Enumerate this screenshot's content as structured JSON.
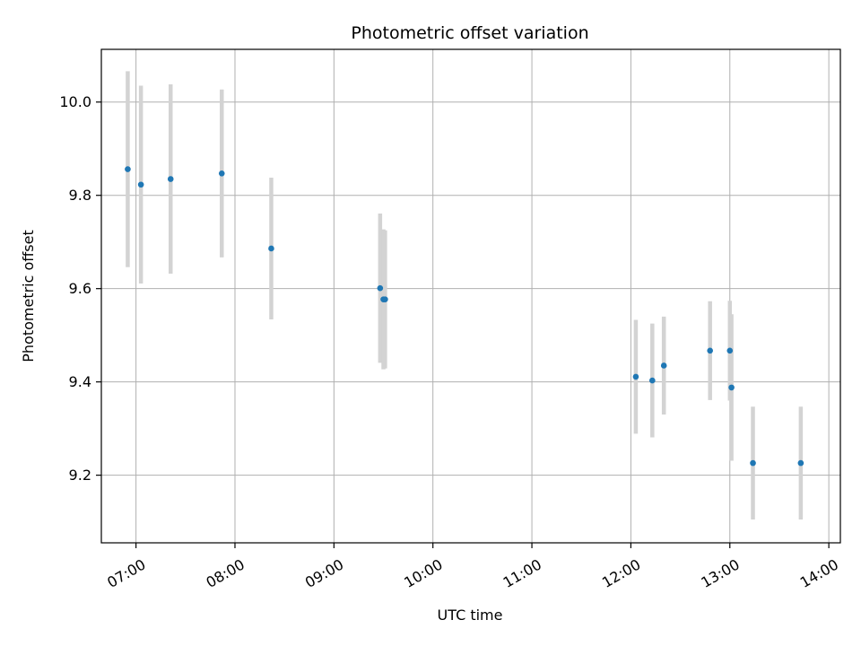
{
  "chart_data": {
    "type": "scatter",
    "title": "Photometric offset variation",
    "xlabel": "UTC time",
    "ylabel": "Photometric offset",
    "x_axis_type": "time",
    "xlim": [
      "06:39",
      "14:07"
    ],
    "ylim": [
      9.055,
      10.113
    ],
    "x_ticks": [
      "07:00",
      "08:00",
      "09:00",
      "10:00",
      "11:00",
      "12:00",
      "13:00",
      "14:00"
    ],
    "y_ticks": [
      9.2,
      9.4,
      9.6,
      9.8,
      10.0
    ],
    "y_tick_labels": [
      "9.2",
      "9.4",
      "9.6",
      "9.8",
      "10.0"
    ],
    "grid": true,
    "x_tick_rotation": 30,
    "marker_color": "#1f77b4",
    "errorbar_color": "#d3d3d3",
    "series": [
      {
        "points": [
          {
            "x": "06:55",
            "y": 9.856,
            "yerr": 0.21
          },
          {
            "x": "07:03",
            "y": 9.823,
            "yerr": 0.212
          },
          {
            "x": "07:21",
            "y": 9.835,
            "yerr": 0.203
          },
          {
            "x": "07:52",
            "y": 9.847,
            "yerr": 0.18
          },
          {
            "x": "08:22",
            "y": 9.686,
            "yerr": 0.152
          },
          {
            "x": "09:28",
            "y": 9.601,
            "yerr": 0.16
          },
          {
            "x": "09:30",
            "y": 9.577,
            "yerr": 0.15
          },
          {
            "x": "09:31",
            "y": 9.577,
            "yerr": 0.148
          },
          {
            "x": "12:03",
            "y": 9.411,
            "yerr": 0.122
          },
          {
            "x": "12:13",
            "y": 9.403,
            "yerr": 0.122
          },
          {
            "x": "12:20",
            "y": 9.435,
            "yerr": 0.105
          },
          {
            "x": "12:48",
            "y": 9.467,
            "yerr": 0.106
          },
          {
            "x": "13:00",
            "y": 9.467,
            "yerr": 0.107
          },
          {
            "x": "13:01",
            "y": 9.388,
            "yerr": 0.157
          },
          {
            "x": "13:14",
            "y": 9.226,
            "yerr": 0.121
          },
          {
            "x": "13:43",
            "y": 9.226,
            "yerr": 0.121
          }
        ]
      }
    ]
  }
}
